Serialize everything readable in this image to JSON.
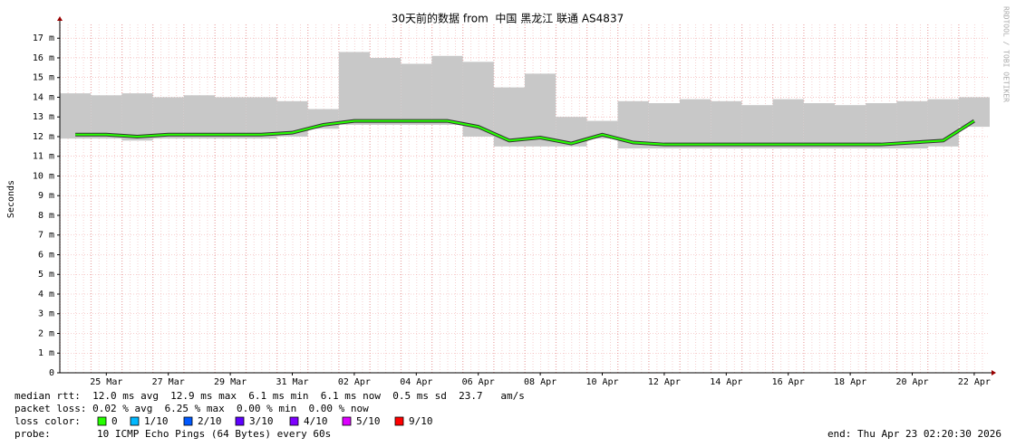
{
  "chart_data": {
    "type": "smoke",
    "title": "30天前的数据 from  中国 黑龙江 联通 AS4837",
    "y_label": "Seconds",
    "watermark": "RRDTOOL / TOBI OETIKER",
    "categories": [
      null,
      "25 Mar",
      null,
      "27 Mar",
      null,
      "29 Mar",
      null,
      "31 Mar",
      null,
      "02 Apr",
      null,
      "04 Apr",
      null,
      "06 Apr",
      null,
      "08 Apr",
      null,
      "10 Apr",
      null,
      "12 Apr",
      null,
      "14 Apr",
      null,
      "16 Apr",
      null,
      "18 Apr",
      null,
      "20 Apr",
      null,
      "22 Apr"
    ],
    "series": [
      {
        "color": "#26ff00",
        "values": [
          0.0121,
          0.0121,
          0.012,
          0.0121,
          0.0121,
          0.0121,
          0.0121,
          0.0122,
          0.0126,
          0.0128,
          0.0128,
          0.0128,
          0.0128,
          0.0125,
          0.0118,
          0.01195,
          0.01165,
          0.0121,
          0.0117,
          0.0116,
          0.0116,
          0.0116,
          0.0116,
          0.0116,
          0.0116,
          0.0116,
          0.0116,
          0.0117,
          0.0118,
          0.0128
        ]
      }
    ],
    "smoke": {
      "color": "#c8c8c8",
      "low": [
        0.0119,
        0.0119,
        0.0118,
        0.0119,
        0.0119,
        0.0119,
        0.0119,
        0.012,
        0.0124,
        0.0126,
        0.0126,
        0.0126,
        0.0126,
        0.012,
        0.0115,
        0.0115,
        0.0115,
        0.0119,
        0.0114,
        0.0114,
        0.0114,
        0.0114,
        0.0114,
        0.0114,
        0.0114,
        0.0114,
        0.0114,
        0.0114,
        0.0115,
        0.0125
      ],
      "high": [
        0.0142,
        0.0141,
        0.0142,
        0.014,
        0.0141,
        0.014,
        0.014,
        0.0138,
        0.0134,
        0.0163,
        0.016,
        0.0157,
        0.0161,
        0.0158,
        0.0145,
        0.0152,
        0.013,
        0.0128,
        0.0138,
        0.0137,
        0.0139,
        0.0138,
        0.0136,
        0.0139,
        0.0137,
        0.0136,
        0.0137,
        0.0138,
        0.0139,
        0.014
      ]
    },
    "ylim": [
      0,
      0.0177
    ],
    "yticks": [
      0,
      {
        "value": 0.001,
        "label": "1 m"
      },
      {
        "value": 0.002,
        "label": "2 m"
      },
      {
        "value": 0.003,
        "label": "3 m"
      },
      {
        "value": 0.004,
        "label": "4 m"
      },
      {
        "value": 0.005,
        "label": "5 m"
      },
      {
        "value": 0.006,
        "label": "6 m"
      },
      {
        "value": 0.007,
        "label": "7 m"
      },
      {
        "value": 0.008,
        "label": "8 m"
      },
      {
        "value": 0.009,
        "label": "9 m"
      },
      {
        "value": 0.01,
        "label": "10 m"
      },
      {
        "value": 0.011,
        "label": "11 m"
      },
      {
        "value": 0.012,
        "label": "12 m"
      },
      {
        "value": 0.013,
        "label": "13 m"
      },
      {
        "value": 0.014,
        "label": "14 m"
      },
      {
        "value": 0.015,
        "label": "15 m"
      },
      {
        "value": 0.016,
        "label": "16 m"
      },
      {
        "value": 0.017,
        "label": "17 m"
      }
    ],
    "grid": true,
    "stats_lines": [
      "median rtt:  12.0 ms avg  12.9 ms max  6.1 ms min  6.1 ms now  0.5 ms sd  23.7   am/s",
      "packet loss: 0.02 % avg  6.25 % max  0.00 % min  0.00 % now"
    ],
    "loss_color_label": "loss color:",
    "loss_legend": [
      {
        "label": "0",
        "color": "#26ff00"
      },
      {
        "label": "1/10",
        "color": "#00b8ff"
      },
      {
        "label": "2/10",
        "color": "#0059ff"
      },
      {
        "label": "3/10",
        "color": "#5e00ff"
      },
      {
        "label": "4/10",
        "color": "#7e00ff"
      },
      {
        "label": "5/10",
        "color": "#dd00ff"
      },
      {
        "label": "9/10",
        "color": "#ff0000"
      }
    ],
    "probe_label": "probe:",
    "probe_text": "10 ICMP Echo Pings (64 Bytes) every 60s",
    "end_text": "end: Thu Apr 23 02:20:30 2026"
  }
}
